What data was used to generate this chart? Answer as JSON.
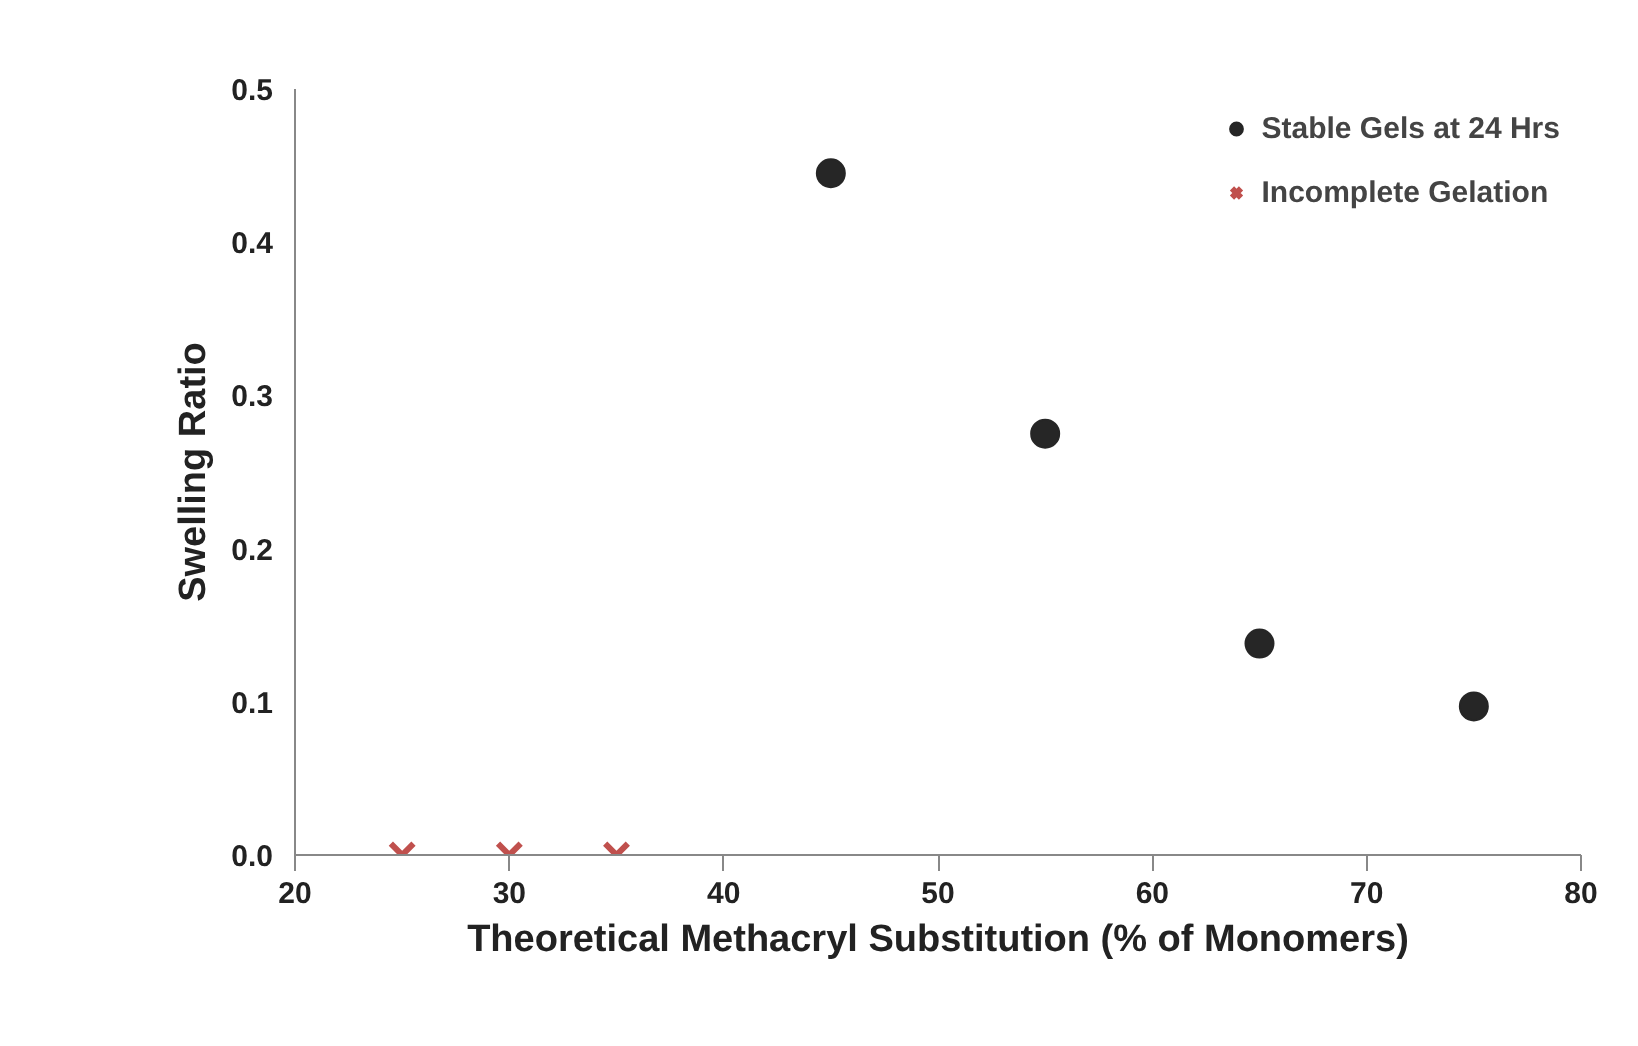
{
  "chart_data": {
    "type": "scatter",
    "xlabel": "Theoretical Methacryl Substitution (% of Monomers)",
    "ylabel": "Swelling Ratio",
    "xlim": [
      20,
      80
    ],
    "xticks": [
      20,
      30,
      40,
      50,
      60,
      70,
      80
    ],
    "ylim": [
      0,
      0.5
    ],
    "yticks": [
      {
        "value": 0,
        "label": "0.0"
      },
      0.1,
      0.2,
      0.3,
      0.4,
      0.5
    ],
    "grid": false,
    "legend": "top right",
    "series": [
      {
        "name": "Stable Gels at 24 Hrs",
        "color": "#262626",
        "marker": "circle",
        "x": [
          45,
          55,
          65,
          75
        ],
        "values": [
          0.445,
          0.275,
          0.138,
          0.097
        ]
      },
      {
        "name": "Incomplete Gelation",
        "color": "#c0504d",
        "marker": "cross",
        "x": [
          25,
          30,
          35
        ],
        "values": [
          0,
          0,
          0
        ]
      }
    ]
  }
}
